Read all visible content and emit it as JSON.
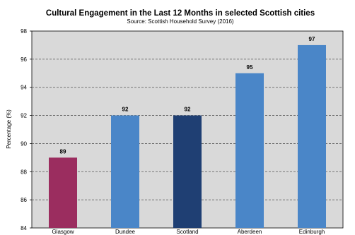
{
  "chart_data": {
    "type": "bar",
    "title": "Cultural Engagement in the Last 12 Months in selected Scottish cities",
    "subtitle": "Source: Scottish Household Survey (2016)",
    "xlabel": "",
    "ylabel": "Percentage (%)",
    "ylim": [
      84,
      98
    ],
    "yticks": [
      84,
      86,
      88,
      90,
      92,
      94,
      96,
      98
    ],
    "grid": true,
    "categories": [
      "Glasgow",
      "Dundee",
      "Scotland",
      "Aberdeen",
      "Edinburgh"
    ],
    "values": [
      89,
      92,
      92,
      95,
      97
    ],
    "data_labels": [
      "89",
      "92",
      "92",
      "95",
      "97"
    ],
    "colors": [
      "#9B2D5F",
      "#4A86C8",
      "#1F3F73",
      "#4A86C8",
      "#4A86C8"
    ],
    "plot_background": "#D9D9D9"
  }
}
